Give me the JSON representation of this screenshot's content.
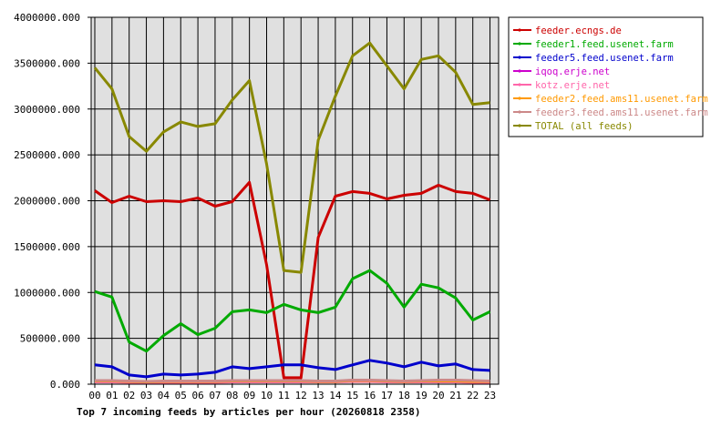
{
  "chart_data": {
    "type": "line",
    "title": "Top 7 incoming feeds by articles per hour (20260818 2358)",
    "xlabel": "",
    "ylabel": "",
    "ylim": [
      0,
      4000000
    ],
    "y_ticks": [
      "0.000",
      "500000.000",
      "1000000.000",
      "1500000.000",
      "2000000.000",
      "2500000.000",
      "3000000.000",
      "3500000.000",
      "4000000.000"
    ],
    "y_tick_values": [
      0,
      500000,
      1000000,
      1500000,
      2000000,
      2500000,
      3000000,
      3500000,
      4000000
    ],
    "categories": [
      "00",
      "01",
      "02",
      "03",
      "04",
      "05",
      "06",
      "07",
      "08",
      "09",
      "10",
      "11",
      "12",
      "13",
      "14",
      "15",
      "16",
      "17",
      "18",
      "19",
      "20",
      "21",
      "22",
      "23"
    ],
    "grid": true,
    "legend_position": "right",
    "series": [
      {
        "name": "feeder.ecngs.de",
        "color": "#cc0000",
        "values": [
          2110000,
          1980000,
          2050000,
          1990000,
          2000000,
          1990000,
          2030000,
          1940000,
          1990000,
          2200000,
          1300000,
          70000,
          70000,
          1600000,
          2050000,
          2100000,
          2080000,
          2020000,
          2060000,
          2080000,
          2170000,
          2100000,
          2080000,
          2010000
        ]
      },
      {
        "name": "feeder1.feed.usenet.farm",
        "color": "#00aa00",
        "values": [
          1010000,
          950000,
          460000,
          360000,
          530000,
          660000,
          540000,
          610000,
          790000,
          810000,
          780000,
          870000,
          810000,
          780000,
          840000,
          1150000,
          1240000,
          1100000,
          840000,
          1090000,
          1050000,
          940000,
          700000,
          790000
        ]
      },
      {
        "name": "feeder5.feed.usenet.farm",
        "color": "#0000cc",
        "values": [
          210000,
          190000,
          100000,
          80000,
          110000,
          100000,
          110000,
          130000,
          190000,
          170000,
          190000,
          210000,
          210000,
          180000,
          160000,
          210000,
          260000,
          230000,
          190000,
          240000,
          200000,
          220000,
          160000,
          150000
        ]
      },
      {
        "name": "iqoq.erje.net",
        "color": "#cc00cc",
        "values": [
          30000,
          30000,
          25000,
          20000,
          25000,
          25000,
          25000,
          25000,
          30000,
          30000,
          30000,
          30000,
          30000,
          30000,
          30000,
          35000,
          35000,
          30000,
          30000,
          30000,
          30000,
          30000,
          25000,
          25000
        ]
      },
      {
        "name": "kotz.erje.net",
        "color": "#ff66aa",
        "values": [
          25000,
          25000,
          20000,
          20000,
          20000,
          20000,
          20000,
          20000,
          25000,
          25000,
          25000,
          25000,
          25000,
          25000,
          25000,
          30000,
          30000,
          25000,
          25000,
          25000,
          25000,
          25000,
          20000,
          20000
        ]
      },
      {
        "name": "feeder2.feed.ams11.usenet.farm",
        "color": "#ff9900",
        "values": [
          35000,
          35000,
          30000,
          25000,
          30000,
          30000,
          30000,
          30000,
          35000,
          35000,
          35000,
          35000,
          35000,
          30000,
          30000,
          40000,
          40000,
          35000,
          30000,
          35000,
          35000,
          35000,
          30000,
          30000
        ]
      },
      {
        "name": "feeder3.feed.ams11.usenet.farm",
        "color": "#cc8888",
        "values": [
          40000,
          40000,
          35000,
          30000,
          35000,
          35000,
          35000,
          35000,
          40000,
          40000,
          40000,
          40000,
          40000,
          35000,
          35000,
          45000,
          45000,
          40000,
          35000,
          40000,
          45000,
          45000,
          40000,
          35000
        ]
      },
      {
        "name": "TOTAL (all feeds)",
        "color": "#888800",
        "values": [
          3450000,
          3220000,
          2700000,
          2540000,
          2750000,
          2860000,
          2810000,
          2840000,
          3100000,
          3310000,
          2400000,
          1240000,
          1220000,
          2660000,
          3140000,
          3580000,
          3720000,
          3470000,
          3220000,
          3540000,
          3580000,
          3400000,
          3050000,
          3070000
        ]
      }
    ]
  }
}
